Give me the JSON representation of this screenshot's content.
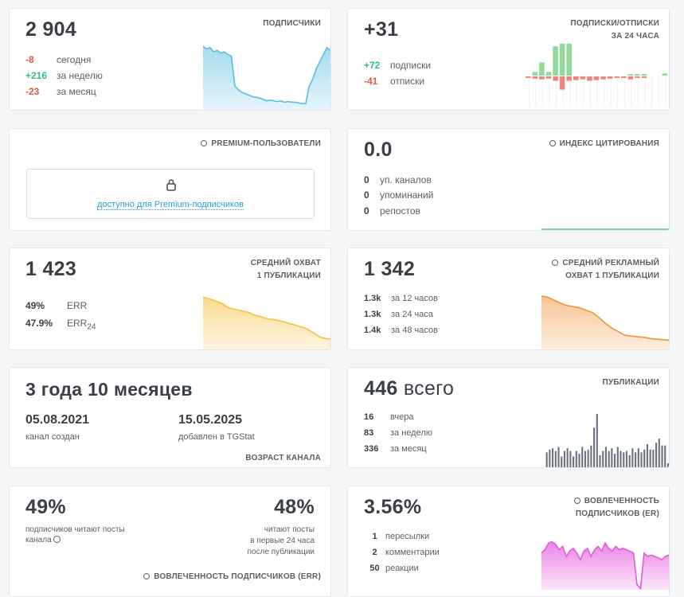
{
  "subscribers": {
    "value": "2 904",
    "title": "ПОДПИСЧИКИ",
    "rows": [
      {
        "value": "-8",
        "label": "сегодня",
        "tone": "neg"
      },
      {
        "value": "+216",
        "label": "за неделю",
        "tone": "pos"
      },
      {
        "value": "-23",
        "label": "за месяц",
        "tone": "neg"
      }
    ],
    "sparkline": [
      0.92,
      0.88,
      0.9,
      0.84,
      0.86,
      0.82,
      0.84,
      0.8,
      0.78,
      0.35,
      0.3,
      0.26,
      0.24,
      0.22,
      0.2,
      0.19,
      0.18,
      0.16,
      0.14,
      0.15,
      0.14,
      0.13,
      0.14,
      0.12,
      0.13,
      0.12,
      0.12,
      0.11,
      0.1,
      0.1,
      0.35,
      0.45,
      0.6,
      0.7,
      0.8,
      0.9,
      0.86
    ],
    "sparkline_color": "#5bbde0"
  },
  "subs_unsubs": {
    "value": "+31",
    "title_line1": "ПОДПИСКИ/ОТПИСКИ",
    "title_line2": "ЗА 24 ЧАСА",
    "rows": [
      {
        "value": "+72",
        "label": "подписки",
        "tone": "pos"
      },
      {
        "value": "-41",
        "label": "отписки",
        "tone": "neg"
      }
    ],
    "bars": [
      {
        "up": 0,
        "down": 2
      },
      {
        "up": 5,
        "down": 3
      },
      {
        "up": 18,
        "down": 4
      },
      {
        "up": 5,
        "down": 3
      },
      {
        "up": 40,
        "down": 6
      },
      {
        "up": 45,
        "down": 18
      },
      {
        "up": 45,
        "down": 6
      },
      {
        "up": 0,
        "down": 5
      },
      {
        "up": 0,
        "down": 4
      },
      {
        "up": 0,
        "down": 6
      },
      {
        "up": 0,
        "down": 5
      },
      {
        "up": 0,
        "down": 4
      },
      {
        "up": 0,
        "down": 3
      },
      {
        "up": 0,
        "down": 2
      },
      {
        "up": 0,
        "down": 2
      },
      {
        "up": 2,
        "down": 4
      },
      {
        "up": 2,
        "down": 2
      },
      {
        "up": 2,
        "down": 2
      },
      {
        "up": 0,
        "down": 0
      },
      {
        "up": 0,
        "down": 0
      },
      {
        "up": 3,
        "down": 0
      }
    ],
    "colors": {
      "up": "#8fdb9a",
      "down": "#f2837a"
    }
  },
  "premium_users": {
    "title": "PREMIUM-ПОЛЬЗОВАТЕЛИ",
    "link": "доступно для Premium-подписчиков"
  },
  "citation": {
    "value": "0.0",
    "title": "ИНДЕКС ЦИТИРОВАНИЯ",
    "rows": [
      {
        "value": "0",
        "label": "уп. каналов"
      },
      {
        "value": "0",
        "label": "упоминаний"
      },
      {
        "value": "0",
        "label": "репостов"
      }
    ],
    "line_color": "#7ed99a"
  },
  "avg_reach": {
    "value": "1 423",
    "title_line1": "СРЕДНИЙ ОХВАТ",
    "title_line2": "1 ПУБЛИКАЦИИ",
    "err_value": "49%",
    "err_label": "ERR",
    "err24_value": "47.9%",
    "err24_label": "ERR",
    "err24_sub": "24",
    "sparkline": [
      0.9,
      0.88,
      0.85,
      0.82,
      0.78,
      0.72,
      0.7,
      0.68,
      0.66,
      0.64,
      0.6,
      0.58,
      0.55,
      0.53,
      0.52,
      0.5,
      0.48,
      0.45,
      0.43,
      0.4,
      0.38,
      0.33,
      0.28,
      0.22,
      0.2,
      0.19
    ],
    "sparkline_color": "#f5c242"
  },
  "avg_ad_reach": {
    "value": "1 342",
    "title_line1": "СРЕДНИЙ РЕКЛАМНЫЙ",
    "title_line2": "ОХВАТ 1 ПУБЛИКАЦИИ",
    "rows": [
      {
        "value": "1.3k",
        "label": "за 12 часов"
      },
      {
        "value": "1.3k",
        "label": "за 24 часа"
      },
      {
        "value": "1.4k",
        "label": "за 48 часов"
      }
    ],
    "sparkline": [
      0.92,
      0.9,
      0.85,
      0.8,
      0.76,
      0.74,
      0.72,
      0.68,
      0.64,
      0.56,
      0.46,
      0.38,
      0.32,
      0.26,
      0.24,
      0.23,
      0.22,
      0.2,
      0.19,
      0.18,
      0.17
    ],
    "sparkline_color": "#f0943a"
  },
  "channel_age": {
    "value": "3 года 10 месяцев",
    "created_date": "05.08.2021",
    "created_label": "канал создан",
    "added_date": "15.05.2025",
    "added_label": "добавлен в TGStat",
    "title": "ВОЗРАСТ КАНАЛА"
  },
  "publications": {
    "value": "446",
    "value_suffix": "всего",
    "title": "ПУБЛИКАЦИИ",
    "rows": [
      {
        "value": "16",
        "label": "вчера"
      },
      {
        "value": "83",
        "label": "за неделю"
      },
      {
        "value": "336",
        "label": "за месяц"
      }
    ],
    "bars": [
      12,
      14,
      15,
      13,
      16,
      9,
      13,
      15,
      13,
      9,
      13,
      11,
      16,
      13,
      14,
      17,
      30,
      40,
      10,
      13,
      16,
      13,
      15,
      11,
      16,
      13,
      12,
      13,
      10,
      15,
      12,
      15,
      12,
      14,
      18,
      14,
      14,
      19,
      22,
      17,
      17,
      4
    ],
    "bar_color": "#6b7280"
  },
  "err_card": {
    "left_value": "49%",
    "left_text_line1": "подписчиков читают посты",
    "left_text_line2": "канала",
    "right_value": "48%",
    "right_text_line1": "читают посты",
    "right_text_line2": "в первые 24 часа",
    "right_text_line3": "после публикации",
    "title": "ВОВЛЕЧЕННОСТЬ ПОДПИСЧИКОВ (ERR)"
  },
  "er_card": {
    "value": "3.56%",
    "title_line1": "ВОВЛЕЧЕННОСТЬ",
    "title_line2": "ПОДПИСЧИКОВ (ER)",
    "rows": [
      {
        "value": "1",
        "label": "пересылки"
      },
      {
        "value": "2",
        "label": "комментарии"
      },
      {
        "value": "50",
        "label": "реакции"
      }
    ],
    "sparkline": [
      0.55,
      0.6,
      0.7,
      0.72,
      0.68,
      0.6,
      0.65,
      0.5,
      0.58,
      0.62,
      0.55,
      0.45,
      0.58,
      0.62,
      0.5,
      0.6,
      0.65,
      0.58,
      0.7,
      0.62,
      0.58,
      0.65,
      0.6,
      0.62,
      0.6,
      0.58,
      0.55,
      0.08,
      0.02,
      0.55,
      0.5,
      0.52,
      0.5,
      0.48,
      0.45,
      0.5,
      0.52
    ],
    "sparkline_color": "#e35bdc"
  }
}
